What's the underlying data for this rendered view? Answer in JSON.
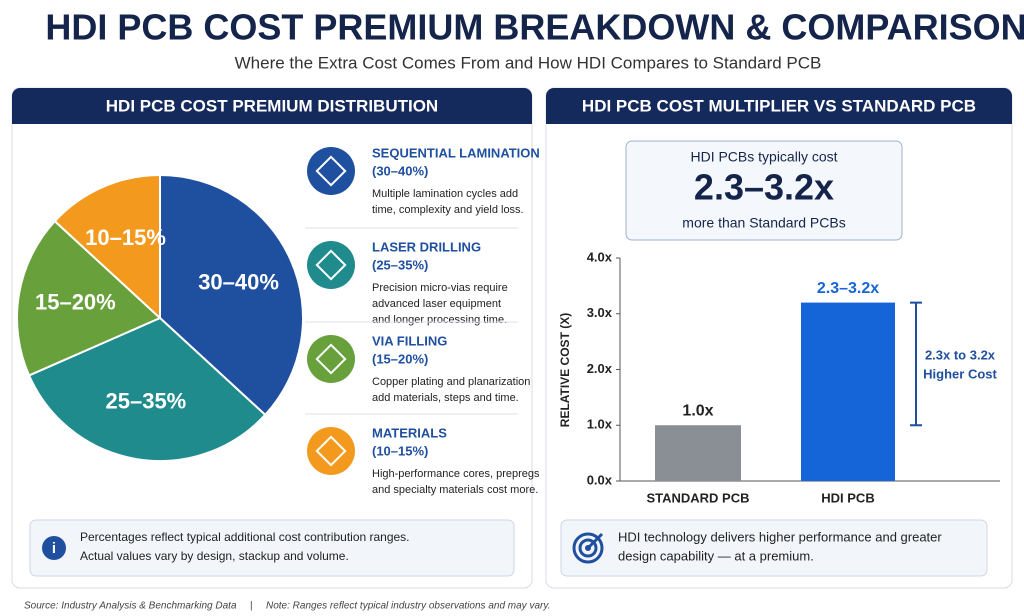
{
  "header": {
    "title": "HDI PCB COST PREMIUM BREAKDOWN & COMPARISON",
    "subtitle": "Where the Extra Cost Comes From and How HDI Compares to Standard PCB"
  },
  "chart_data": [
    {
      "type": "pie",
      "title": "HDI PCB COST PREMIUM DISTRIBUTION",
      "categories": [
        "SEQUENTIAL LAMINATION",
        "LASER DRILLING",
        "VIA FILLING",
        "MATERIALS"
      ],
      "values": [
        35,
        30,
        17.5,
        12.5
      ],
      "value_labels": [
        "30–40%",
        "25–35%",
        "15–20%",
        "10–15%"
      ],
      "colors": [
        "#1f4f9f",
        "#1f8b8c",
        "#68a03c",
        "#f39a1e"
      ],
      "legend_items": [
        {
          "range": "(30–40%)",
          "description": [
            "Multiple lamination cycles add",
            "time, complexity and yield loss."
          ]
        },
        {
          "range": "(25–35%)",
          "description": [
            "Precision micro-vias require",
            "advanced laser equipment",
            "and longer processing time."
          ]
        },
        {
          "range": "(15–20%)",
          "description": [
            "Copper plating and planarization",
            "add materials, steps and time."
          ]
        },
        {
          "range": "(10–15%)",
          "description": [
            "High-performance cores, prepregs",
            "and specialty materials cost more."
          ]
        }
      ],
      "note": [
        "Percentages reflect typical additional cost contribution ranges.",
        "Actual values vary by design, stackup and volume."
      ]
    },
    {
      "type": "bar",
      "title": "HDI PCB COST MULTIPLIER VS STANDARD PCB",
      "callout": {
        "line1": "HDI PCBs typically cost",
        "value": "2.3–3.2x",
        "line2": "more than Standard PCBs"
      },
      "categories": [
        "STANDARD PCB",
        "HDI PCB"
      ],
      "values": [
        1.0,
        3.2
      ],
      "value_labels": [
        "1.0x",
        "2.3–3.2x"
      ],
      "colors": [
        "#8a8f96",
        "#1565d8"
      ],
      "ylabel": "RELATIVE COST (X)",
      "ylim": [
        0,
        4
      ],
      "yticks": [
        {
          "value": 0,
          "label": "0.0x"
        },
        {
          "value": 1,
          "label": "1.0x"
        },
        {
          "value": 2,
          "label": "2.0x"
        },
        {
          "value": 3,
          "label": "3.0x"
        },
        {
          "value": 4,
          "label": "4.0x"
        }
      ],
      "grid": false,
      "annotation": [
        "2.3x to 3.2x",
        "Higher Cost"
      ],
      "note": [
        "HDI technology delivers higher performance and greater",
        "design capability — at a premium."
      ]
    }
  ],
  "footer": {
    "source": "Source: Industry Analysis & Benchmarking Data",
    "separator": "|",
    "note": "Note: Ranges reflect typical industry observations and may vary."
  }
}
